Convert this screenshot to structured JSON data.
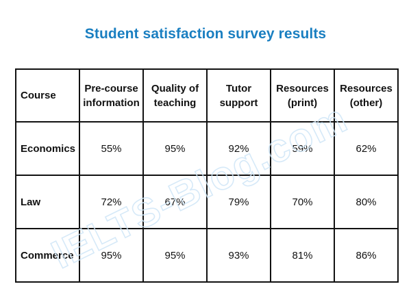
{
  "chart_data": {
    "type": "table",
    "title": "Student satisfaction survey results",
    "columns": [
      "Course",
      "Pre-course information",
      "Quality of teaching",
      "Tutor support",
      "Resources (print)",
      "Resources (other)"
    ],
    "header_lines": [
      [
        "Course"
      ],
      [
        "Pre-course",
        "information"
      ],
      [
        "Quality of",
        "teaching"
      ],
      [
        "Tutor",
        "support"
      ],
      [
        "Resources",
        "(print)"
      ],
      [
        "Resources",
        "(other)"
      ]
    ],
    "rows": [
      {
        "course": "Economics",
        "values": [
          "55%",
          "95%",
          "92%",
          "59%",
          "62%"
        ]
      },
      {
        "course": "Law",
        "values": [
          "72%",
          "67%",
          "79%",
          "70%",
          "80%"
        ]
      },
      {
        "course": "Commerce",
        "values": [
          "95%",
          "95%",
          "93%",
          "81%",
          "86%"
        ]
      }
    ]
  },
  "watermark": {
    "text": "IELTS-Blog.com",
    "color": "#cfe6f7"
  },
  "colors": {
    "title": "#1a7fc1",
    "border": "#111111",
    "text": "#111111"
  }
}
